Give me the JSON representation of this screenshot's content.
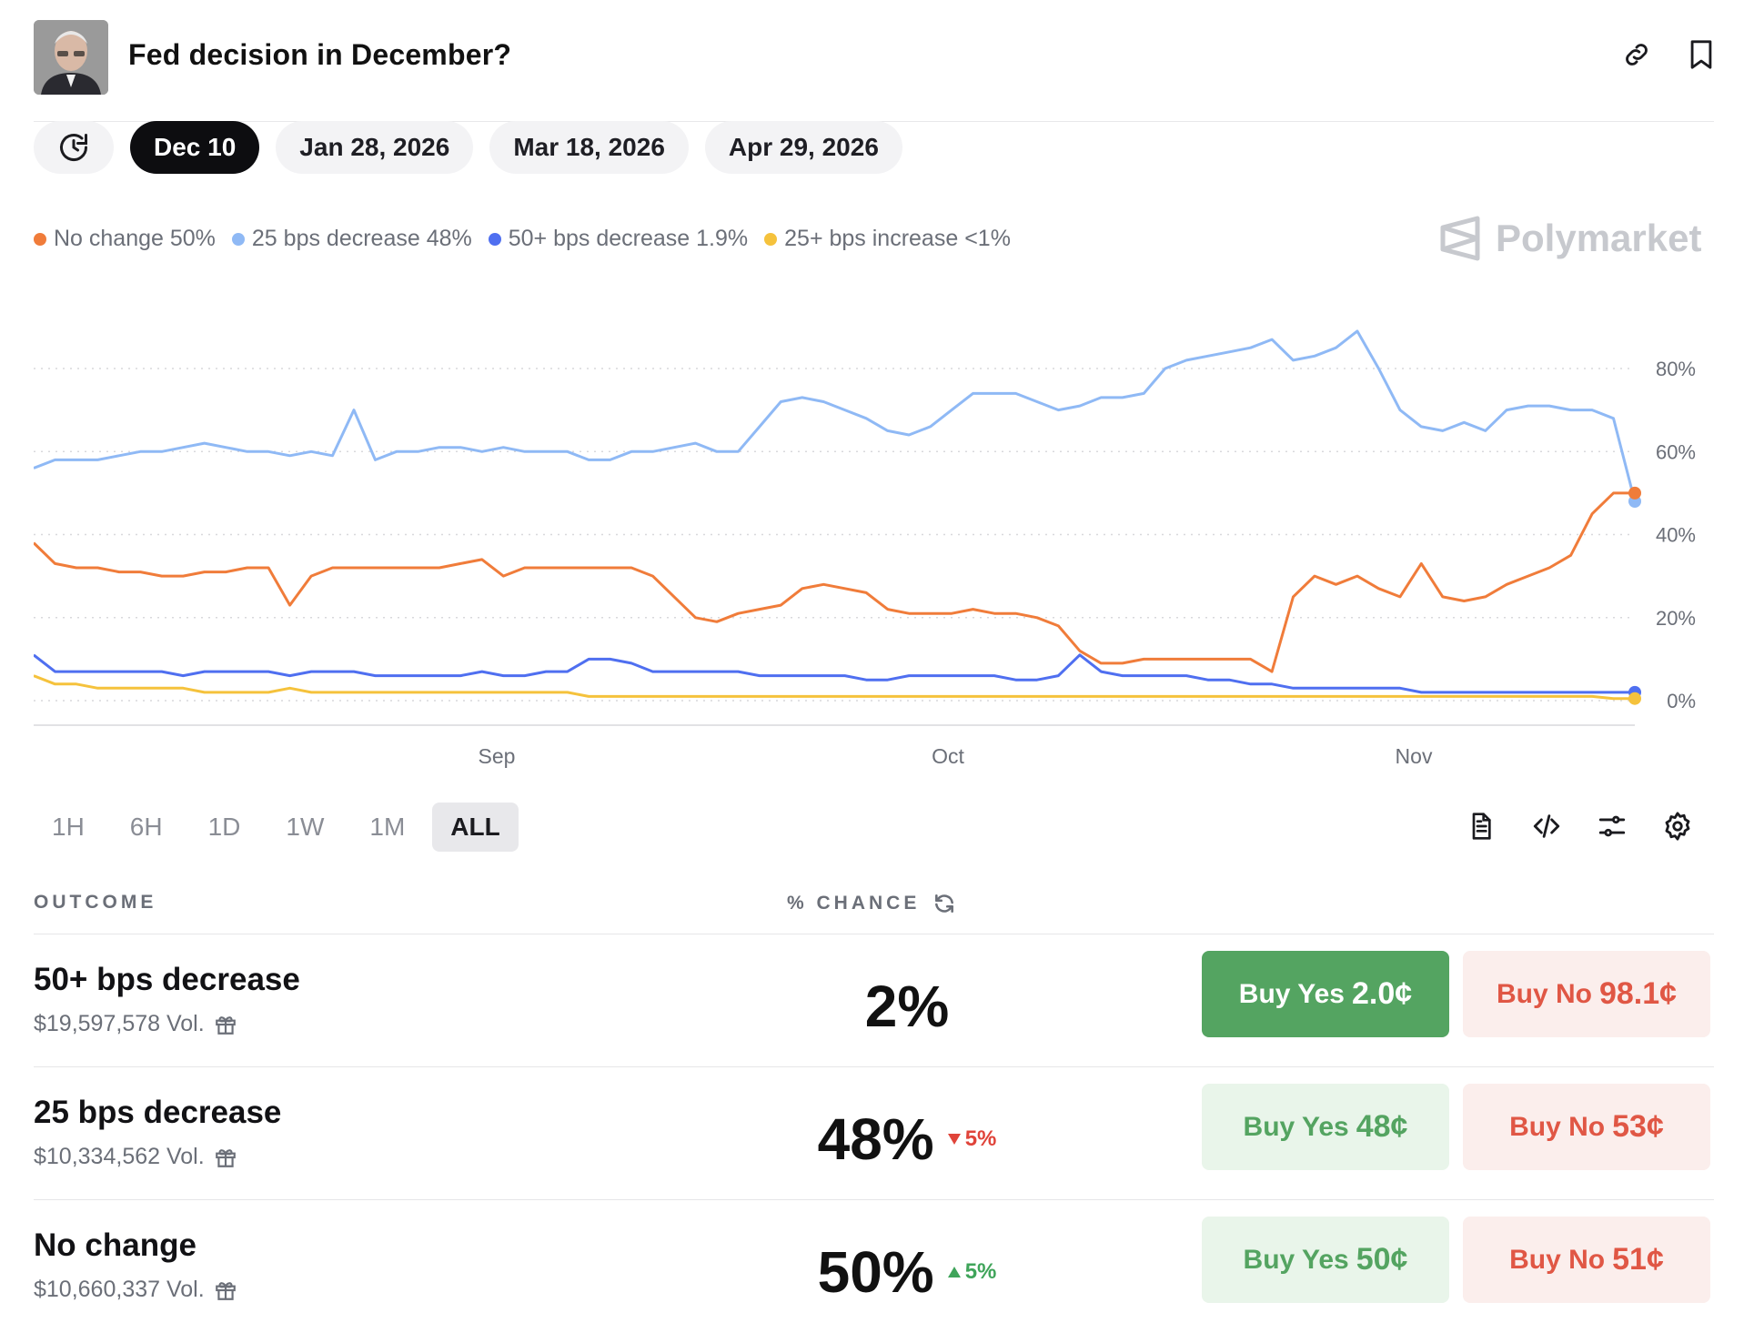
{
  "header": {
    "title": "Fed decision in December?"
  },
  "date_tabs": [
    "Dec 10",
    "Jan 28, 2026",
    "Mar 18, 2026",
    "Apr 29, 2026"
  ],
  "active_date_tab": "Dec 10",
  "legend": [
    {
      "label": "No change 50%",
      "color": "#f07c3a"
    },
    {
      "label": "25 bps decrease 48%",
      "color": "#8fb9f5"
    },
    {
      "label": "50+ bps decrease 1.9%",
      "color": "#4f6ff0"
    },
    {
      "label": "25+ bps increase <1%",
      "color": "#f5c23c"
    }
  ],
  "brand": "Polymarket",
  "chart_data": {
    "type": "line",
    "x_ticks": [
      "Sep",
      "Oct",
      "Nov"
    ],
    "y_ticks": [
      "0%",
      "20%",
      "40%",
      "60%",
      "80%"
    ],
    "ylim": [
      0,
      100
    ],
    "grid": "horizontal dotted",
    "series": [
      {
        "name": "25 bps decrease",
        "color": "#8fb9f5",
        "values": [
          56,
          58,
          58,
          58,
          59,
          60,
          60,
          61,
          62,
          61,
          60,
          60,
          59,
          60,
          59,
          70,
          58,
          60,
          60,
          61,
          61,
          60,
          61,
          60,
          60,
          60,
          58,
          58,
          60,
          60,
          61,
          62,
          60,
          60,
          66,
          72,
          73,
          72,
          70,
          68,
          65,
          64,
          66,
          70,
          74,
          74,
          74,
          72,
          70,
          71,
          73,
          73,
          74,
          80,
          82,
          83,
          84,
          85,
          87,
          82,
          83,
          85,
          89,
          80,
          70,
          66,
          65,
          67,
          65,
          70,
          71,
          71,
          70,
          70,
          68,
          48
        ]
      },
      {
        "name": "No change",
        "color": "#f07c3a",
        "values": [
          38,
          33,
          32,
          32,
          31,
          31,
          30,
          30,
          31,
          31,
          32,
          32,
          23,
          30,
          32,
          32,
          32,
          32,
          32,
          32,
          33,
          34,
          30,
          32,
          32,
          32,
          32,
          32,
          32,
          30,
          25,
          20,
          19,
          21,
          22,
          23,
          27,
          28,
          27,
          26,
          22,
          21,
          21,
          21,
          22,
          21,
          21,
          20,
          18,
          12,
          9,
          9,
          10,
          10,
          10,
          10,
          10,
          10,
          7,
          25,
          30,
          28,
          30,
          27,
          25,
          33,
          25,
          24,
          25,
          28,
          30,
          32,
          35,
          45,
          50,
          50
        ]
      },
      {
        "name": "50+ bps decrease",
        "color": "#4f6ff0",
        "values": [
          11,
          7,
          7,
          7,
          7,
          7,
          7,
          6,
          7,
          7,
          7,
          7,
          6,
          7,
          7,
          7,
          6,
          6,
          6,
          6,
          6,
          7,
          6,
          6,
          7,
          7,
          10,
          10,
          9,
          7,
          7,
          7,
          7,
          7,
          6,
          6,
          6,
          6,
          6,
          5,
          5,
          6,
          6,
          6,
          6,
          6,
          5,
          5,
          6,
          11,
          7,
          6,
          6,
          6,
          6,
          5,
          5,
          4,
          4,
          3,
          3,
          3,
          3,
          3,
          3,
          2,
          2,
          2,
          2,
          2,
          2,
          2,
          2,
          2,
          2,
          2
        ]
      },
      {
        "name": "25+ bps increase",
        "color": "#f5c23c",
        "values": [
          6,
          4,
          4,
          3,
          3,
          3,
          3,
          3,
          2,
          2,
          2,
          2,
          3,
          2,
          2,
          2,
          2,
          2,
          2,
          2,
          2,
          2,
          2,
          2,
          2,
          2,
          1,
          1,
          1,
          1,
          1,
          1,
          1,
          1,
          1,
          1,
          1,
          1,
          1,
          1,
          1,
          1,
          1,
          1,
          1,
          1,
          1,
          1,
          1,
          1,
          1,
          1,
          1,
          1,
          1,
          1,
          1,
          1,
          1,
          1,
          1,
          1,
          1,
          1,
          1,
          1,
          1,
          1,
          1,
          1,
          1,
          1,
          1,
          1,
          0.5,
          0.5
        ]
      }
    ]
  },
  "ranges": [
    "1H",
    "6H",
    "1D",
    "1W",
    "1M",
    "ALL"
  ],
  "active_range": "ALL",
  "table": {
    "col_outcome": "OUTCOME",
    "col_chance": "% CHANCE",
    "rows": [
      {
        "name": "50+ bps decrease",
        "volume": "$19,597,578 Vol.",
        "chance": "2%",
        "change": "",
        "change_dir": "",
        "yes_label": "Buy Yes",
        "yes_price": "2.0¢",
        "no_label": "Buy No",
        "no_price": "98.1¢",
        "yes_active": true
      },
      {
        "name": "25 bps decrease",
        "volume": "$10,334,562 Vol.",
        "chance": "48%",
        "change": "5%",
        "change_dir": "down",
        "yes_label": "Buy Yes",
        "yes_price": "48¢",
        "no_label": "Buy No",
        "no_price": "53¢",
        "yes_active": false
      },
      {
        "name": "No change",
        "volume": "$10,660,337 Vol.",
        "chance": "50%",
        "change": "5%",
        "change_dir": "up",
        "yes_label": "Buy Yes",
        "yes_price": "50¢",
        "no_label": "Buy No",
        "no_price": "51¢",
        "yes_active": false
      }
    ]
  }
}
